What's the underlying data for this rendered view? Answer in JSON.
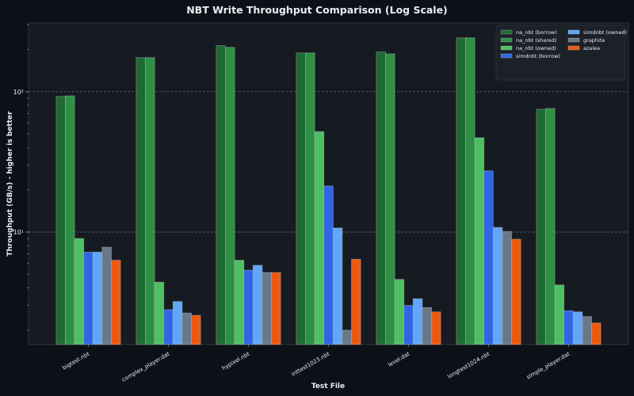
{
  "chart_data": {
    "type": "bar",
    "title": "NBT Write Throughput Comparison (Log Scale)",
    "xlabel": "Test File",
    "ylabel": "Throughput (GB/s) - higher is better",
    "yscale": "log",
    "ylim": [
      1.58,
      309
    ],
    "yticks": [
      {
        "value": 10,
        "label": "10¹"
      },
      {
        "value": 100,
        "label": "10²"
      }
    ],
    "grid": "major y dashed",
    "legend_position": "top-right",
    "categories": [
      "bigtest.nbt",
      "complex_player.dat",
      "hypixel.nbt",
      "inttest1023.nbt",
      "level.dat",
      "longtest1024.nbt",
      "simple_player.dat"
    ],
    "series": [
      {
        "name": "na_nbt (borrow)",
        "color": "#1e6a32",
        "values": [
          92.5,
          175,
          213,
          189,
          192,
          242,
          75
        ]
      },
      {
        "name": "na_nbt (shared)",
        "color": "#2e8f45",
        "values": [
          93.5,
          175,
          207,
          189,
          186,
          242,
          76
        ]
      },
      {
        "name": "na_nbt (owned)",
        "color": "#4fbf63",
        "values": [
          9.0,
          4.4,
          6.3,
          52,
          4.6,
          47,
          4.2
        ]
      },
      {
        "name": "simdnbt (borrow)",
        "color": "#2f66e8",
        "values": [
          7.2,
          2.8,
          5.35,
          21.3,
          3.0,
          27.3,
          2.75
        ]
      },
      {
        "name": "simdnbt (owned)",
        "color": "#62a6f8",
        "values": [
          7.2,
          3.2,
          5.8,
          10.7,
          3.35,
          10.8,
          2.7
        ]
      },
      {
        "name": "graphite",
        "color": "#6b7786",
        "values": [
          7.8,
          2.65,
          5.15,
          2.0,
          2.9,
          10.1,
          2.5
        ]
      },
      {
        "name": "azalea",
        "color": "#ec5a12",
        "values": [
          6.3,
          2.55,
          5.15,
          6.4,
          2.7,
          8.9,
          2.25
        ]
      }
    ]
  }
}
